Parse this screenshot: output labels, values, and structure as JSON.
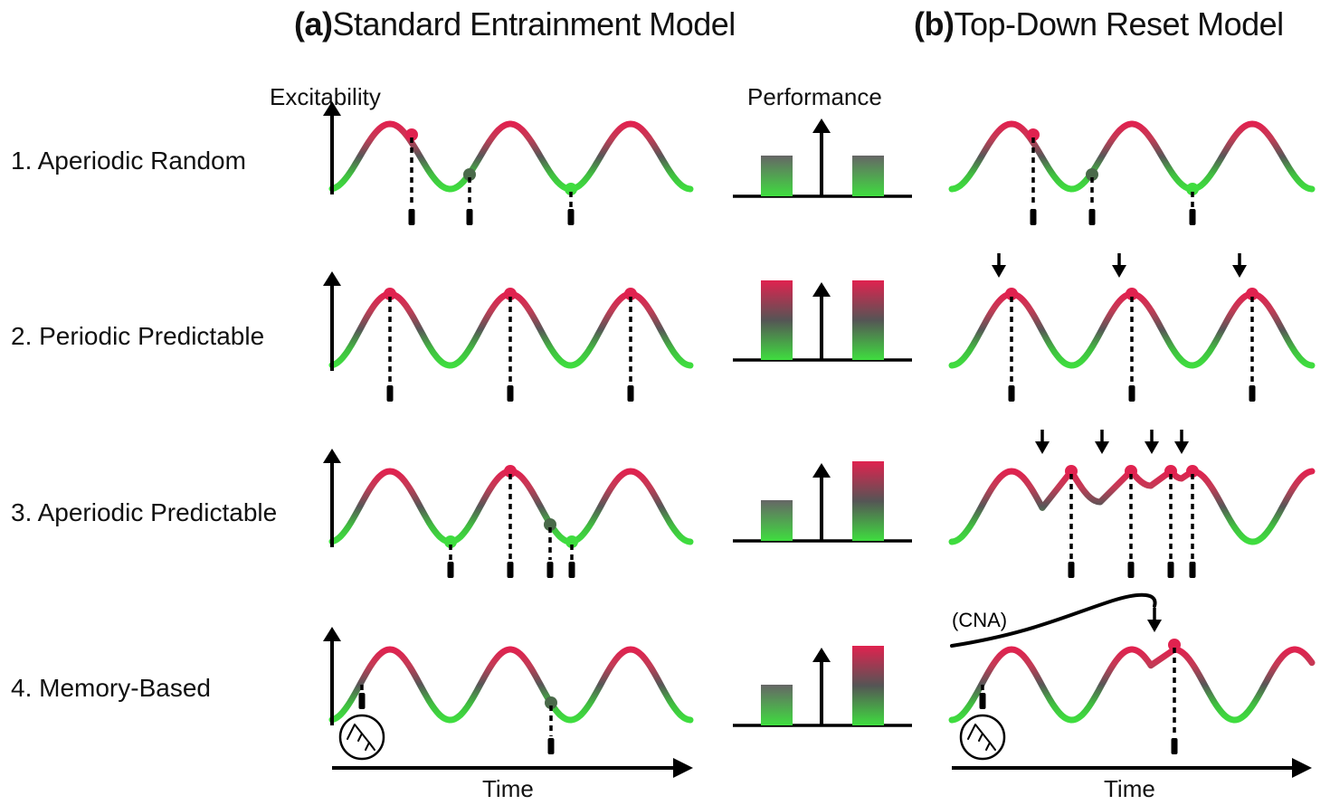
{
  "titles": {
    "a_tag": "(a)",
    "a_text": "Standard Entrainment Model",
    "b_tag": "(b)",
    "b_text": "Top-Down Reset Model"
  },
  "axis": {
    "excitability": "Excitability",
    "performance": "Performance",
    "time": "Time"
  },
  "rows": [
    {
      "label": "1. Aperiodic Random"
    },
    {
      "label": "2. Periodic Predictable"
    },
    {
      "label": "3. Aperiodic Predictable"
    },
    {
      "label": "4. Memory-Based"
    }
  ],
  "cna_label": "(CNA)",
  "colors": {
    "peak": "#e0224f",
    "trough": "#3fdd3f",
    "mid": "#555555",
    "axis": "#000000"
  },
  "icons": {
    "memory": "branching-tree-icon"
  },
  "performance": [
    {
      "left_level": "low",
      "right_level": "low"
    },
    {
      "left_level": "high",
      "right_level": "high"
    },
    {
      "left_level": "low",
      "right_level": "high"
    },
    {
      "left_level": "low",
      "right_level": "high"
    }
  ]
}
